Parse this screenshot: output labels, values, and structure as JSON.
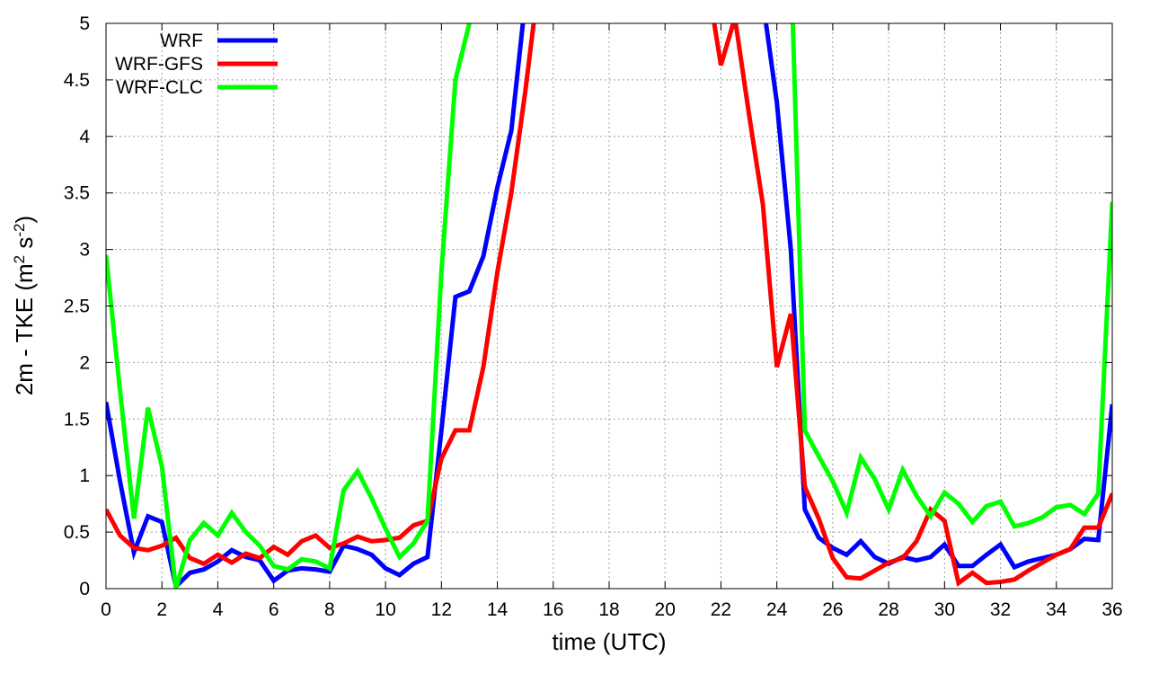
{
  "chart_data": {
    "type": "line",
    "title": "",
    "xlabel": "time (UTC)",
    "ylabel": {
      "base": "2m - TKE (m",
      "sup1": "2",
      "mid": " s",
      "sup2": "-2",
      "end": ")"
    },
    "xlim": [
      0,
      36
    ],
    "ylim": [
      0,
      5
    ],
    "xticks": [
      0,
      2,
      4,
      6,
      8,
      10,
      12,
      14,
      16,
      18,
      20,
      22,
      24,
      26,
      28,
      30,
      32,
      34,
      36
    ],
    "yticks": [
      0,
      0.5,
      1,
      1.5,
      2,
      2.5,
      3,
      3.5,
      4,
      4.5,
      5
    ],
    "ytick_labels": [
      "0",
      "0.5",
      "1",
      "1.5",
      "2",
      "2.5",
      "3",
      "3.5",
      "4",
      "4.5",
      "5"
    ],
    "grid": true,
    "legend_position": "top-left",
    "series": [
      {
        "name": "WRF",
        "color": "#0000ff",
        "x": [
          0,
          0.5,
          1,
          1.5,
          2,
          2.5,
          3,
          3.5,
          4,
          4.5,
          5,
          5.5,
          6,
          6.5,
          7,
          7.5,
          8,
          8.5,
          9,
          9.5,
          10,
          10.5,
          11,
          11.5,
          12,
          12.5,
          13,
          13.5,
          14,
          14.5,
          15,
          23.5,
          24,
          24.5,
          25,
          25.5,
          26,
          26.5,
          27,
          27.5,
          28,
          28.5,
          29,
          29.5,
          30,
          30.5,
          31,
          31.5,
          32,
          32.5,
          33,
          33.5,
          34,
          34.5,
          35,
          35.5,
          36
        ],
        "y": [
          1.65,
          0.95,
          0.32,
          0.64,
          0.59,
          0.02,
          0.14,
          0.17,
          0.24,
          0.34,
          0.28,
          0.25,
          0.07,
          0.16,
          0.18,
          0.17,
          0.15,
          0.38,
          0.35,
          0.3,
          0.18,
          0.12,
          0.22,
          0.28,
          1.4,
          2.58,
          2.63,
          2.94,
          3.55,
          4.05,
          5.2,
          5.2,
          4.3,
          3.0,
          0.7,
          0.45,
          0.36,
          0.3,
          0.42,
          0.28,
          0.22,
          0.28,
          0.25,
          0.28,
          0.39,
          0.2,
          0.2,
          0.3,
          0.39,
          0.19,
          0.24,
          0.27,
          0.3,
          0.35,
          0.44,
          0.43,
          1.63
        ]
      },
      {
        "name": "WRF-GFS",
        "color": "#ff0000",
        "x": [
          0,
          0.5,
          1,
          1.5,
          2,
          2.5,
          3,
          3.5,
          4,
          4.5,
          5,
          5.5,
          6,
          6.5,
          7,
          7.5,
          8,
          8.5,
          9,
          9.5,
          10,
          10.5,
          11,
          11.5,
          12,
          12.5,
          13,
          13.5,
          14,
          14.5,
          15,
          15.5,
          21.5,
          22,
          22.5,
          23,
          23.5,
          24,
          24.5,
          25,
          25.5,
          26,
          26.5,
          27,
          27.5,
          28,
          28.5,
          29,
          29.5,
          30,
          30.5,
          31,
          31.5,
          32,
          32.5,
          33,
          33.5,
          34,
          34.5,
          35,
          35.5,
          36
        ],
        "y": [
          0.7,
          0.47,
          0.36,
          0.34,
          0.38,
          0.45,
          0.27,
          0.22,
          0.3,
          0.23,
          0.31,
          0.27,
          0.37,
          0.3,
          0.42,
          0.47,
          0.36,
          0.4,
          0.46,
          0.42,
          0.43,
          0.45,
          0.56,
          0.6,
          1.15,
          1.4,
          1.4,
          1.96,
          2.8,
          3.5,
          4.4,
          5.4,
          5.4,
          4.63,
          5.05,
          4.2,
          3.4,
          1.96,
          2.43,
          0.9,
          0.62,
          0.27,
          0.1,
          0.09,
          0.16,
          0.23,
          0.27,
          0.42,
          0.7,
          0.6,
          0.05,
          0.14,
          0.05,
          0.06,
          0.08,
          0.16,
          0.23,
          0.3,
          0.35,
          0.54,
          0.54,
          0.84
        ]
      },
      {
        "name": "WRF-CLC",
        "color": "#00ff00",
        "x": [
          0,
          0.5,
          1,
          1.5,
          2,
          2.5,
          3,
          3.5,
          4,
          4.5,
          5,
          5.5,
          6,
          6.5,
          7,
          7.5,
          8,
          8.5,
          9,
          9.5,
          10,
          10.5,
          11,
          11.5,
          12,
          12.5,
          13,
          13.5,
          24.5,
          25,
          25.5,
          26,
          26.5,
          27,
          27.5,
          28,
          28.5,
          29,
          29.5,
          30,
          30.5,
          31,
          31.5,
          32,
          32.5,
          33,
          33.5,
          34,
          34.5,
          35,
          35.5,
          36
        ],
        "y": [
          2.95,
          1.75,
          0.62,
          1.6,
          1.08,
          0.0,
          0.43,
          0.58,
          0.47,
          0.67,
          0.5,
          0.38,
          0.2,
          0.17,
          0.26,
          0.24,
          0.18,
          0.87,
          1.04,
          0.8,
          0.53,
          0.28,
          0.4,
          0.6,
          2.8,
          4.5,
          5.0,
          5.6,
          5.6,
          1.4,
          1.17,
          0.95,
          0.67,
          1.16,
          0.97,
          0.7,
          1.05,
          0.82,
          0.64,
          0.85,
          0.75,
          0.59,
          0.73,
          0.77,
          0.55,
          0.58,
          0.63,
          0.72,
          0.74,
          0.66,
          0.84,
          3.42
        ]
      }
    ]
  }
}
